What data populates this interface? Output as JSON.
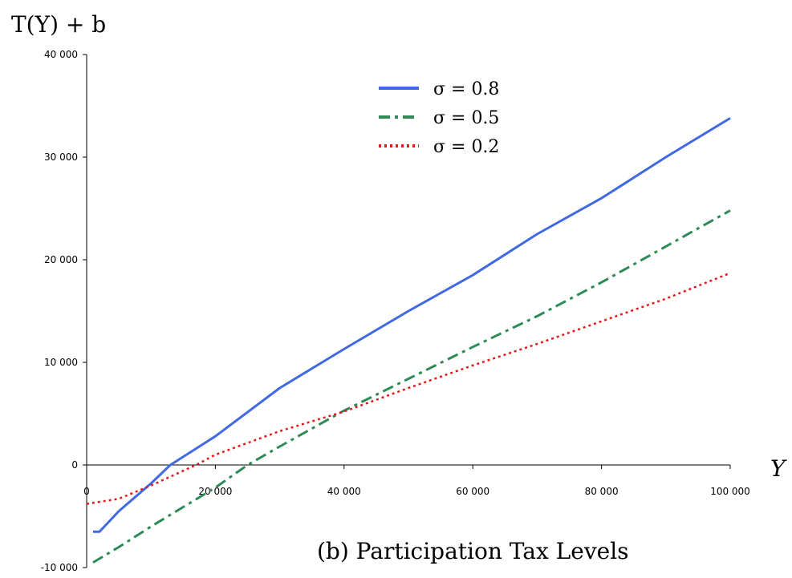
{
  "chart_data": {
    "type": "line",
    "title": "",
    "caption": "(b) Participation Tax Levels",
    "ylabel": "T(Y) + b",
    "xlabel": "Y",
    "xlim": [
      0,
      100000
    ],
    "ylim": [
      -10000,
      40000
    ],
    "x_ticks": [
      0,
      20000,
      40000,
      60000,
      80000,
      100000
    ],
    "x_tick_labels": [
      "0",
      "20 000",
      "40 000",
      "60 000",
      "80 000",
      "100 000"
    ],
    "y_ticks": [
      -10000,
      0,
      10000,
      20000,
      30000,
      40000
    ],
    "y_tick_labels": [
      "-10 000",
      "0",
      "10 000",
      "20 000",
      "30 000",
      "40 000"
    ],
    "grid": false,
    "legend_position": "top-center",
    "series": [
      {
        "name": "σ = 0.8",
        "color": "#4169e1",
        "style": "solid",
        "points": [
          [
            1000,
            -6500
          ],
          [
            2000,
            -6500
          ],
          [
            5000,
            -4500
          ],
          [
            10000,
            -1800
          ],
          [
            13000,
            0
          ],
          [
            20000,
            2800
          ],
          [
            30000,
            7500
          ],
          [
            40000,
            11300
          ],
          [
            50000,
            15000
          ],
          [
            60000,
            18500
          ],
          [
            70000,
            22500
          ],
          [
            80000,
            26000
          ],
          [
            90000,
            30000
          ],
          [
            100000,
            33800
          ]
        ]
      },
      {
        "name": "σ = 0.5",
        "color": "#2e8b57",
        "style": "dash-dot",
        "points": [
          [
            1000,
            -9500
          ],
          [
            5000,
            -8000
          ],
          [
            10000,
            -6000
          ],
          [
            20000,
            -2200
          ],
          [
            25000,
            0
          ],
          [
            30000,
            1800
          ],
          [
            40000,
            5300
          ],
          [
            50000,
            8400
          ],
          [
            60000,
            11500
          ],
          [
            70000,
            14500
          ],
          [
            80000,
            17800
          ],
          [
            90000,
            21300
          ],
          [
            100000,
            24800
          ]
        ]
      },
      {
        "name": "σ = 0.2",
        "color": "#e41a1c",
        "style": "dotted",
        "points": [
          [
            0,
            -3800
          ],
          [
            5000,
            -3300
          ],
          [
            10000,
            -2000
          ],
          [
            17000,
            0
          ],
          [
            20000,
            1000
          ],
          [
            30000,
            3300
          ],
          [
            40000,
            5200
          ],
          [
            50000,
            7500
          ],
          [
            60000,
            9700
          ],
          [
            70000,
            11800
          ],
          [
            80000,
            14000
          ],
          [
            90000,
            16200
          ],
          [
            100000,
            18700
          ]
        ]
      }
    ]
  }
}
